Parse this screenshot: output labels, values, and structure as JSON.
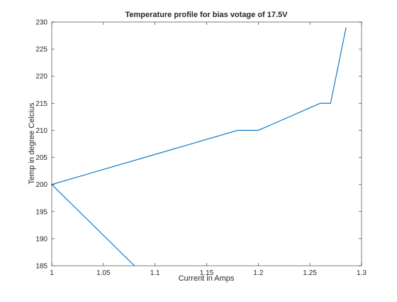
{
  "chart_data": {
    "type": "line",
    "title": "Temperature profile for bias votage of 17.5V",
    "xlabel": "Current in Amps",
    "ylabel": "Temp in degree Celcius",
    "xlim": [
      1,
      1.3
    ],
    "ylim": [
      185,
      230
    ],
    "xticks": [
      "1",
      "1.05",
      "1.1",
      "1.15",
      "1.2",
      "1.25",
      "1.3"
    ],
    "yticks": [
      "185",
      "190",
      "195",
      "200",
      "205",
      "210",
      "215",
      "220",
      "225",
      "230"
    ],
    "grid": false,
    "legend": "none",
    "series": [
      {
        "color": "#0072bd",
        "x": [
          1.08,
          1.0,
          1.18,
          1.2,
          1.26,
          1.27,
          1.285
        ],
        "y": [
          185,
          200,
          210,
          210,
          215,
          215,
          229
        ]
      }
    ]
  }
}
